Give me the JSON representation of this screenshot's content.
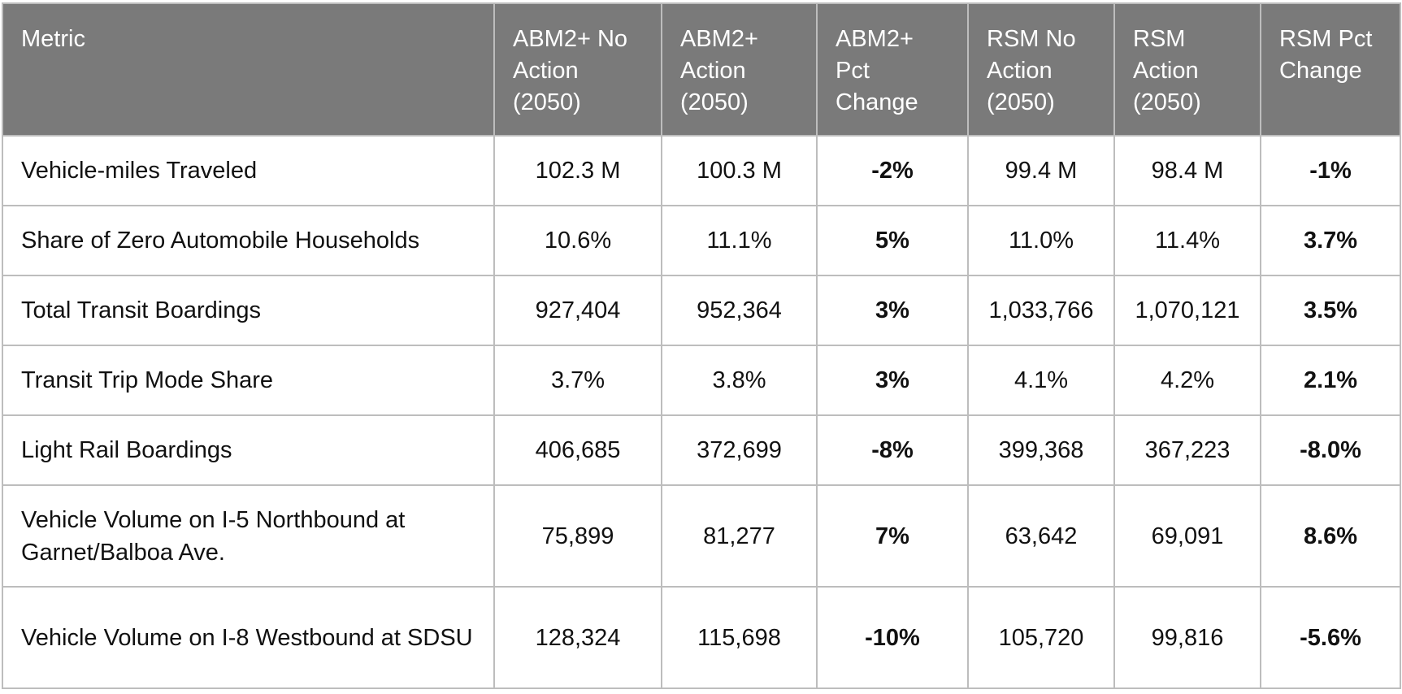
{
  "table": {
    "headers": [
      "Metric",
      "ABM2+ No Action (2050)",
      "ABM2+ Action (2050)",
      "ABM2+ Pct Change",
      "RSM No Action (2050)",
      "RSM Action (2050)",
      "RSM Pct Change"
    ],
    "rows": [
      [
        "Vehicle-miles Traveled",
        "102.3 M",
        "100.3 M",
        "-2%",
        "99.4 M",
        "98.4 M",
        "-1%"
      ],
      [
        "Share of Zero Automobile Households",
        "10.6%",
        "11.1%",
        "5%",
        "11.0%",
        "11.4%",
        "3.7%"
      ],
      [
        "Total Transit Boardings",
        "927,404",
        "952,364",
        "3%",
        "1,033,766",
        "1,070,121",
        "3.5%"
      ],
      [
        "Transit Trip Mode Share",
        "3.7%",
        "3.8%",
        "3%",
        "4.1%",
        "4.2%",
        "2.1%"
      ],
      [
        "Light Rail Boardings",
        "406,685",
        "372,699",
        "-8%",
        "399,368",
        "367,223",
        "-8.0%"
      ],
      [
        "Vehicle Volume on I-5 Northbound at Garnet/Balboa Ave.",
        "75,899",
        "81,277",
        "7%",
        "63,642",
        "69,091",
        "8.6%"
      ],
      [
        "Vehicle Volume on I-8 Westbound at SDSU",
        "128,324",
        "115,698",
        "-10%",
        "105,720",
        "99,816",
        "-5.6%"
      ]
    ]
  },
  "colors": {
    "header_background": "#7a7a7a",
    "header_text": "#ffffff",
    "grid_lines": "#bdbdbd"
  }
}
